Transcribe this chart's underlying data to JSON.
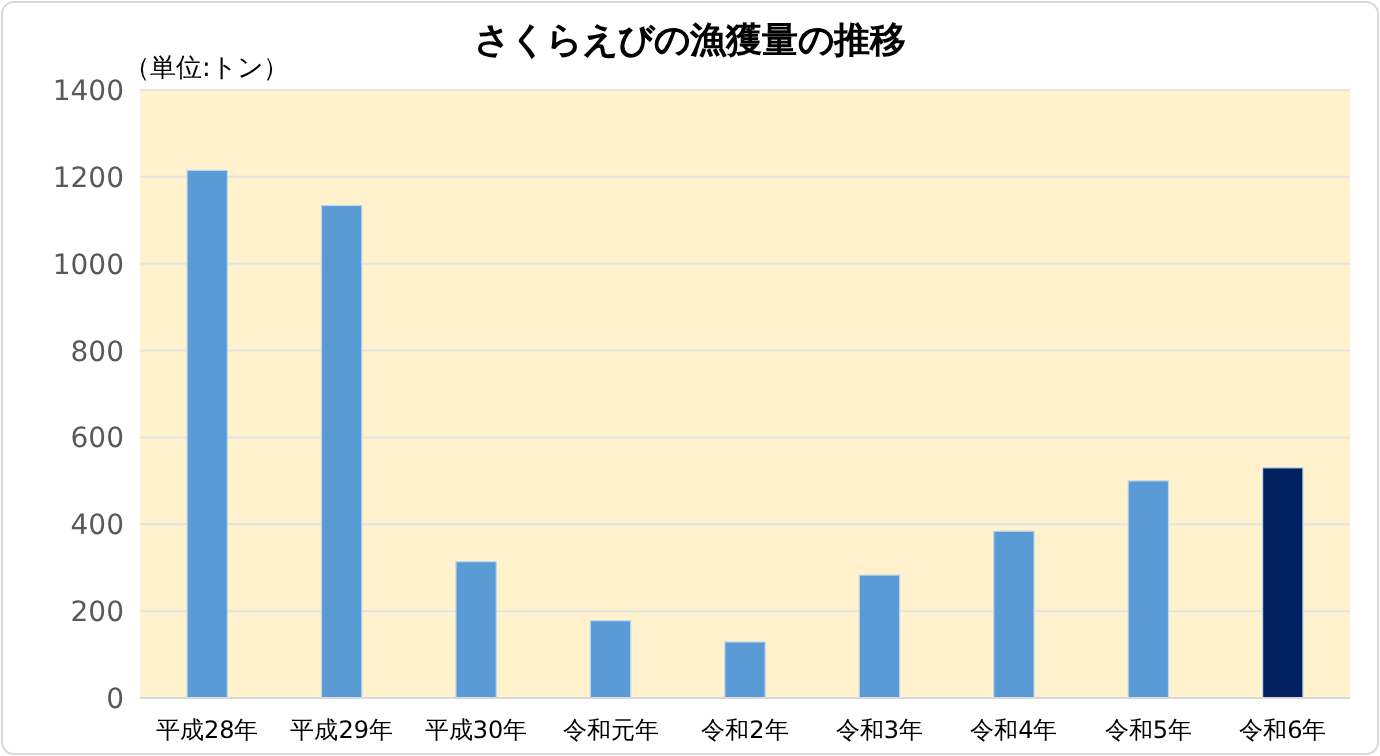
{
  "chart_data": {
    "type": "bar",
    "title": "さくらえびの漁獲量の推移",
    "ylabel": "（単位:トン）",
    "categories": [
      "平成28年",
      "平成29年",
      "平成30年",
      "令和元年",
      "令和2年",
      "令和3年",
      "令和4年",
      "令和5年",
      "令和6年"
    ],
    "values": [
      1215,
      1134,
      314,
      178,
      129,
      283,
      384,
      500,
      530
    ],
    "colors": [
      "#5b9bd5",
      "#5b9bd5",
      "#5b9bd5",
      "#5b9bd5",
      "#5b9bd5",
      "#5b9bd5",
      "#5b9bd5",
      "#5b9bd5",
      "#002060"
    ],
    "ylim": [
      0,
      1400
    ],
    "yticks": [
      0,
      200,
      400,
      600,
      800,
      1000,
      1200,
      1400
    ],
    "grid": "y"
  }
}
